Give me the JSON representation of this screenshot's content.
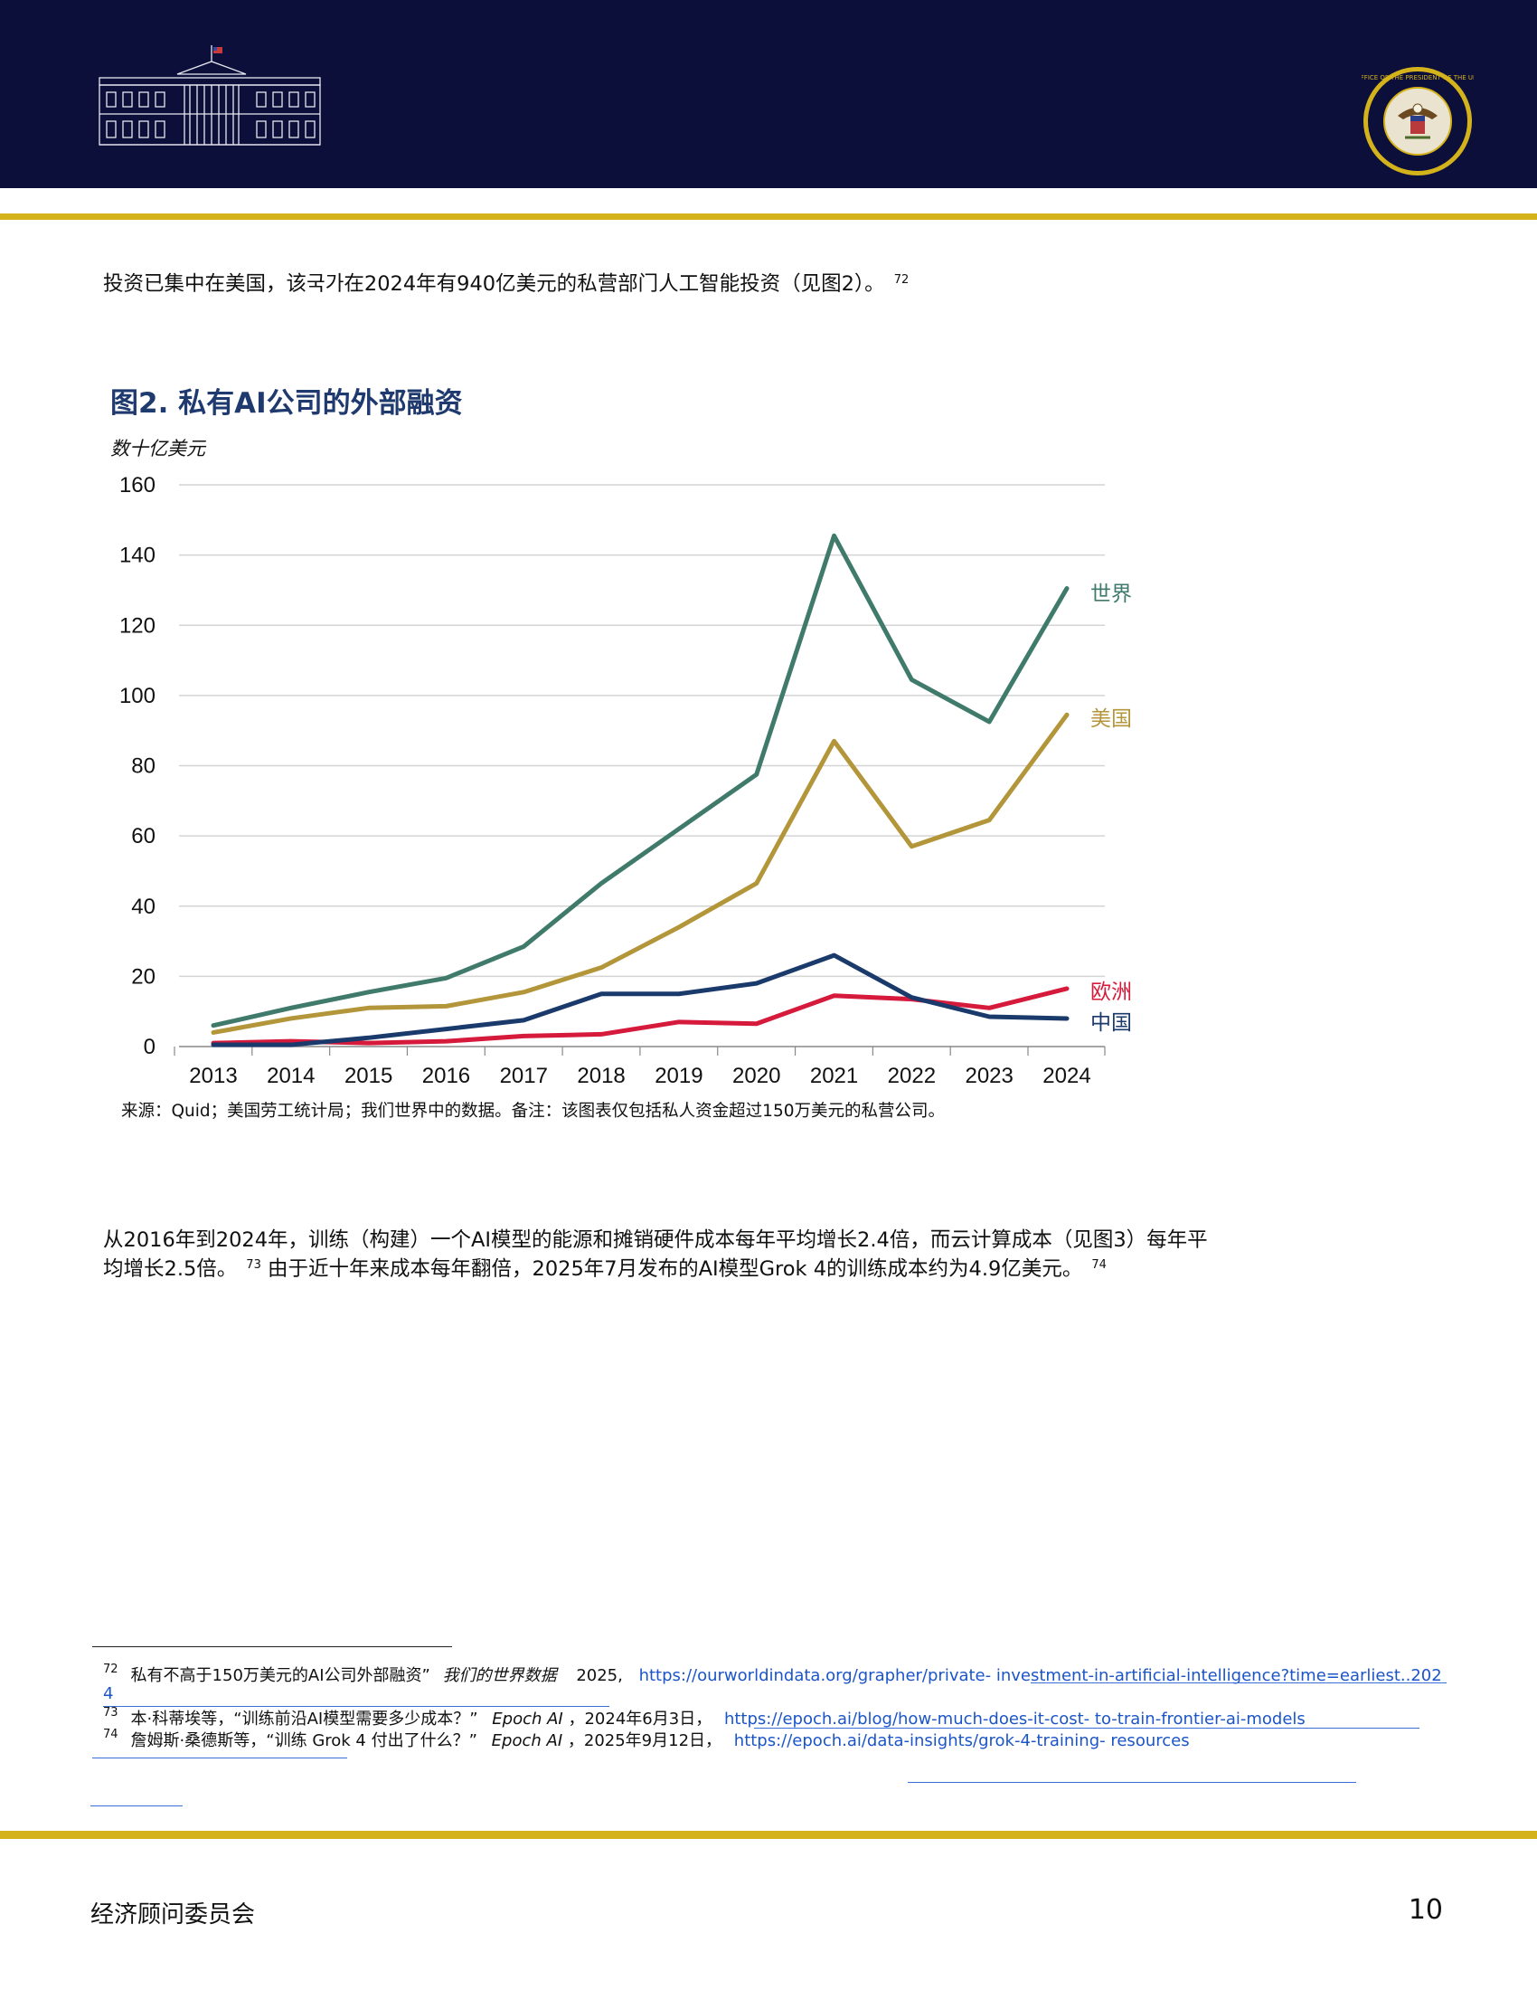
{
  "header": {
    "logo_icon": "white-house-icon",
    "seal_icon": "eop-seal-icon",
    "seal_ring_text": "EXECUTIVE OFFICE OF THE PRESIDENT OF THE UNITED STATES"
  },
  "intro": {
    "text": "投资已集中在美国，该국가在2024年有940亿美元的私营部门人工智能投资（见图2）。",
    "ref": "72"
  },
  "figure": {
    "title": "图2. 私有AI公司的外部融资",
    "unit": "数十亿美元",
    "source": "来源：Quid；美国劳工统计局；我们世界中的数据。备注：该图表仅包括私人资金超过150万美元的私营公司。"
  },
  "chart_data": {
    "type": "line",
    "title": "图2. 私有AI公司的外部融资",
    "ylabel": "数十亿美元",
    "xlabel": "",
    "ylim": [
      0,
      160
    ],
    "yticks": [
      "0",
      "20",
      "40",
      "60",
      "80",
      "100",
      "120",
      "140",
      "160"
    ],
    "categories": [
      "2013",
      "2014",
      "2015",
      "2016",
      "2017",
      "2018",
      "2019",
      "2020",
      "2021",
      "2022",
      "2023",
      "2024"
    ],
    "grid": true,
    "series": [
      {
        "name": "世界",
        "color": "#3f7a6b",
        "values": [
          6,
          11,
          15.5,
          19.5,
          28.5,
          46.5,
          62,
          77.5,
          145.5,
          104.5,
          92.5,
          130.5
        ]
      },
      {
        "name": "美国",
        "color": "#b3953a",
        "values": [
          4,
          8,
          11,
          11.5,
          15.5,
          22.5,
          34,
          46.5,
          87,
          57,
          64.5,
          94.5
        ]
      },
      {
        "name": "欧洲",
        "color": "#d61a3c",
        "values": [
          1,
          1.5,
          1,
          1.5,
          3,
          3.5,
          7,
          6.5,
          14.5,
          13.5,
          11,
          16.5
        ]
      },
      {
        "name": "中国",
        "color": "#1a3a6c",
        "values": [
          0.5,
          0.5,
          2.5,
          5,
          7.5,
          15,
          15,
          18,
          26,
          14,
          8.5,
          8
        ]
      }
    ]
  },
  "body2": {
    "line1": "从2016年到2024年，训练（构建）一个AI模型的能源和摊销硬件成本每年平均增长2.4倍，而云计算成本（见图3）每年平",
    "line2": "均增长2.5倍。",
    "ref1": "73",
    "line2b": "由于近十年来成本每年翻倍，2025年7月发布的AI模型Grok 4的训练成本约为4.9亿美元。",
    "ref2": "74"
  },
  "footnotes": [
    {
      "num": "72",
      "text": "私有不高于150万美元的AI公司外部融资”",
      "italic": "我们的世界数据",
      "date": "2025,",
      "url": "https://ourworldindata.org/grapher/private- investment-in-artificial-intelligence?time=earliest..202",
      "cont": "4"
    },
    {
      "num": "73",
      "text": "本·科蒂埃等，“训练前沿AI模型需要多少成本？”",
      "italic": "Epoch AI",
      "date": "，2024年6月3日，",
      "url": "https://epoch.ai/blog/how-much-does-it-cost- to-train-frontier-ai-models"
    },
    {
      "num": "74",
      "text": "詹姆斯·桑德斯等，“训练 Grok 4 付出了什么？”",
      "italic": "Epoch AI",
      "date": "，2025年9月12日，",
      "url": "https://epoch.ai/data-insights/grok-4-training- resources"
    }
  ],
  "footer": {
    "org": "经济顾问委员会",
    "page": "10"
  }
}
